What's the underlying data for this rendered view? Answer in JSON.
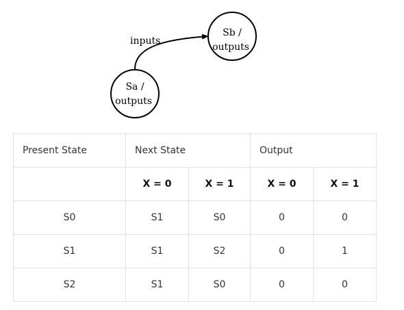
{
  "diagram": {
    "transition_label": "inputs",
    "state_a": {
      "name": "Sa /",
      "output": "outputs"
    },
    "state_b": {
      "name": "Sb /",
      "output": "outputs"
    }
  },
  "table": {
    "headers": {
      "present_state": "Present State",
      "next_state": "Next State",
      "output": "Output"
    },
    "subheaders": {
      "present_state": "",
      "next_x0": "X = 0",
      "next_x1": "X = 1",
      "out_x0": "X = 0",
      "out_x1": "X = 1"
    },
    "rows": [
      {
        "present": "S0",
        "next_x0": "S1",
        "next_x1": "S0",
        "out_x0": "0",
        "out_x1": "0"
      },
      {
        "present": "S1",
        "next_x0": "S1",
        "next_x1": "S2",
        "out_x0": "0",
        "out_x1": "1"
      },
      {
        "present": "S2",
        "next_x0": "S1",
        "next_x1": "S0",
        "out_x0": "0",
        "out_x1": "0"
      }
    ]
  }
}
